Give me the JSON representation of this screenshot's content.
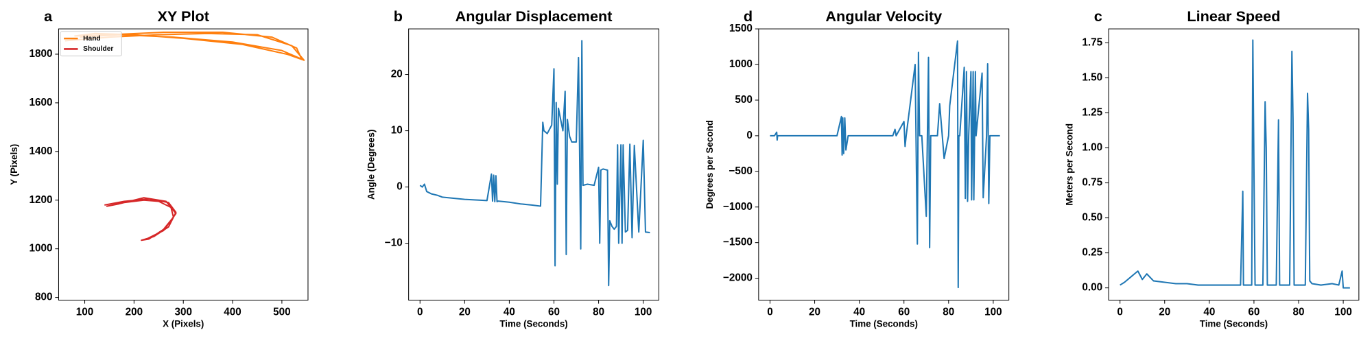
{
  "chart_data": [
    {
      "type": "line",
      "label": "a",
      "title": "XY Plot",
      "xlabel": "X (Pixels)",
      "ylabel": "Y (Pixels)",
      "xlim": [
        47,
        553
      ],
      "ylim": [
        789,
        1904
      ],
      "xticks": [
        100,
        200,
        300,
        400,
        500
      ],
      "yticks": [
        800,
        1000,
        1200,
        1400,
        1600,
        1800
      ],
      "legend": "upper left",
      "series": [
        {
          "name": "Hand",
          "color": "#ff7f0e",
          "x": [
            60,
            150,
            250,
            350,
            450,
            520,
            545,
            510,
            420,
            300,
            200,
            120,
            80,
            150,
            260,
            380,
            480,
            530,
            540,
            500,
            400,
            280,
            170,
            90
          ],
          "values": [
            1855,
            1870,
            1880,
            1885,
            1880,
            1835,
            1775,
            1800,
            1840,
            1865,
            1880,
            1885,
            1875,
            1880,
            1890,
            1890,
            1870,
            1825,
            1780,
            1815,
            1850,
            1870,
            1880,
            1870
          ]
        },
        {
          "name": "Shoulder",
          "color": "#d62728",
          "x": [
            140,
            180,
            230,
            270,
            285,
            270,
            240,
            215,
            230,
            260,
            280,
            275,
            250,
            220,
            180,
            145,
            170,
            220,
            265,
            285,
            260,
            225
          ],
          "values": [
            1180,
            1195,
            1205,
            1190,
            1150,
            1090,
            1050,
            1035,
            1040,
            1080,
            1130,
            1170,
            1195,
            1200,
            1190,
            1175,
            1185,
            1210,
            1195,
            1145,
            1075,
            1040
          ]
        }
      ]
    },
    {
      "type": "line",
      "label": "b",
      "title": "Angular Displacement",
      "xlabel": "Time (Seconds)",
      "ylabel": "Angle (Degrees)",
      "xlim": [
        -5.1,
        107
      ],
      "ylim": [
        -20.1,
        28.1
      ],
      "xticks": [
        0,
        20,
        40,
        60,
        80,
        100
      ],
      "yticks": [
        {
          "value": -10,
          "label": "−10"
        },
        0,
        10,
        20
      ],
      "series": [
        {
          "color": "#1f77b4",
          "x": [
            0,
            1,
            2,
            3,
            4,
            5,
            8,
            10,
            15,
            20,
            25,
            30,
            32,
            32.5,
            33,
            33.5,
            34,
            34.5,
            35,
            40,
            45,
            50,
            54,
            55,
            55.5,
            57,
            59,
            60,
            60.5,
            61,
            61.5,
            62,
            64,
            65,
            65.5,
            66,
            67,
            68,
            70,
            71,
            72,
            72.5,
            73,
            75,
            78,
            80,
            80.5,
            81,
            82,
            84,
            84.5,
            85,
            86,
            87,
            88,
            88.5,
            89,
            90,
            90.5,
            91,
            92,
            93,
            94,
            95,
            96,
            98,
            100,
            101,
            103
          ],
          "values": [
            0.3,
            0,
            0.5,
            -0.8,
            -1,
            -1.2,
            -1.5,
            -1.8,
            -2,
            -2.2,
            -2.3,
            -2.4,
            2.3,
            -2.5,
            2.1,
            -2.6,
            2.0,
            -2.6,
            -2.5,
            -2.7,
            -3,
            -3.2,
            -3.4,
            11.5,
            10,
            9.5,
            11,
            21,
            -14,
            15,
            0.5,
            14,
            10,
            17,
            -12,
            12,
            9,
            8,
            8,
            23,
            -11,
            26,
            0.3,
            0.5,
            0.3,
            3.5,
            -10,
            3,
            3.2,
            3,
            -17.5,
            -6,
            -7,
            -7.5,
            -7,
            7.5,
            -10,
            7.5,
            -10,
            7.5,
            -8,
            -7.7,
            7.6,
            -9,
            7.4,
            -8,
            8.3,
            -8,
            -8.1
          ]
        }
      ]
    },
    {
      "type": "line",
      "label": "d",
      "title": "Angular Velocity",
      "xlabel": "Time (Seconds)",
      "ylabel": "Degrees per Second",
      "xlim": [
        -5.1,
        107
      ],
      "ylim": [
        -2307,
        1500
      ],
      "xticks": [
        0,
        20,
        40,
        60,
        80,
        100
      ],
      "yticks": [
        {
          "value": -2000,
          "label": "−2000"
        },
        {
          "value": -1500,
          "label": "−1500"
        },
        {
          "value": -1000,
          "label": "−1000"
        },
        {
          "value": -500,
          "label": "−500"
        },
        0,
        500,
        1000,
        1500
      ],
      "series": [
        {
          "color": "#1f77b4",
          "x": [
            0,
            2,
            3,
            3.2,
            3.4,
            5,
            10,
            15,
            20,
            30,
            32,
            32.3,
            32.6,
            33,
            33.5,
            34,
            35,
            40,
            50,
            55,
            56,
            56.5,
            60,
            60.5,
            61,
            65,
            66,
            66.5,
            67,
            68,
            70,
            71,
            71.5,
            72,
            72.5,
            75,
            76,
            78,
            80,
            80.5,
            84,
            84.3,
            84.6,
            85,
            87,
            87.5,
            88,
            88.5,
            89,
            90,
            90.3,
            91,
            91.3,
            92,
            92.3,
            95,
            95.5,
            97,
            97.5,
            98,
            98.5,
            103
          ],
          "values": [
            0,
            0,
            50,
            -60,
            0,
            0,
            0,
            0,
            0,
            0,
            270,
            -270,
            250,
            -250,
            250,
            -200,
            0,
            0,
            0,
            0,
            90,
            0,
            200,
            -150,
            0,
            1000,
            -1520,
            1170,
            0,
            0,
            -1130,
            1100,
            -1570,
            0,
            0,
            0,
            450,
            -320,
            0,
            420,
            1330,
            -2130,
            0,
            0,
            960,
            -880,
            900,
            -920,
            0,
            900,
            -900,
            900,
            -900,
            900,
            0,
            880,
            -870,
            0,
            1010,
            -950,
            0,
            0
          ]
        }
      ]
    },
    {
      "type": "line",
      "label": "c",
      "title": "Linear Speed",
      "xlabel": "Time (Seconds)",
      "ylabel": "Meters per Second",
      "xlim": [
        -5.1,
        107
      ],
      "ylim": [
        -0.0875,
        1.85
      ],
      "xticks": [
        0,
        20,
        40,
        60,
        80,
        100
      ],
      "yticks": [
        {
          "value": 0,
          "label": "0.00"
        },
        {
          "value": 0.25,
          "label": "0.25"
        },
        {
          "value": 0.5,
          "label": "0.50"
        },
        {
          "value": 0.75,
          "label": "0.75"
        },
        {
          "value": 1,
          "label": "1.00"
        },
        {
          "value": 1.25,
          "label": "1.25"
        },
        {
          "value": 1.5,
          "label": "1.50"
        },
        {
          "value": 1.75,
          "label": "1.75"
        }
      ],
      "series": [
        {
          "color": "#1f77b4",
          "x": [
            0,
            2,
            5,
            8,
            10,
            12,
            15,
            20,
            25,
            30,
            35,
            40,
            45,
            50,
            54,
            55,
            55.3,
            55.6,
            59,
            59.5,
            60,
            60.5,
            61,
            64,
            65,
            65.5,
            66,
            70,
            71,
            71.5,
            72,
            76,
            77,
            77.5,
            78,
            83,
            84,
            84.5,
            85,
            86,
            90,
            95,
            98,
            99.5,
            100,
            101,
            103
          ],
          "values": [
            0.02,
            0.04,
            0.08,
            0.12,
            0.06,
            0.1,
            0.05,
            0.04,
            0.03,
            0.03,
            0.02,
            0.02,
            0.02,
            0.02,
            0.02,
            0.69,
            0.02,
            0.02,
            0.02,
            1.77,
            0.85,
            0.02,
            0.02,
            0.02,
            1.33,
            1.0,
            0.02,
            0.02,
            1.2,
            0.02,
            0.02,
            0.02,
            1.69,
            1.21,
            0.02,
            0.02,
            1.39,
            1.13,
            0.05,
            0.03,
            0.02,
            0.03,
            0.02,
            0.12,
            0,
            0,
            0
          ]
        }
      ]
    }
  ]
}
